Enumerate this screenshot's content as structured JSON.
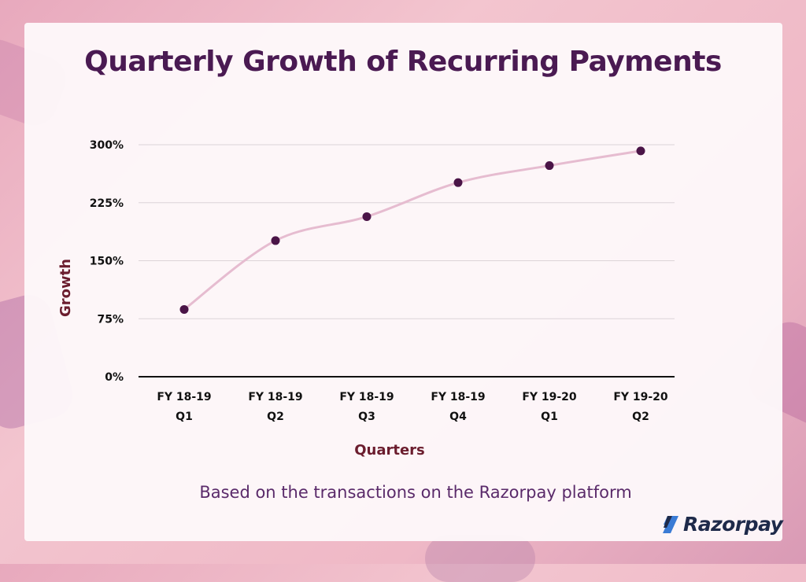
{
  "title": "Quarterly Growth of Recurring Payments",
  "caption": "Based on the transactions on the Razorpay platform",
  "brand": "Razorpay",
  "colors": {
    "title": "#4a1a52",
    "axis_label": "#6b1d2e",
    "line": "#e6bcd0",
    "point": "#4a1447",
    "brand": "#1e2a4a",
    "brand_accent": "#3a7bd5"
  },
  "chart_data": {
    "type": "line",
    "xlabel": "Quarters",
    "ylabel": "Growth",
    "ylim": [
      0,
      300
    ],
    "yticks": [
      "0%",
      "75%",
      "150%",
      "225%",
      "300%"
    ],
    "categories": [
      [
        "FY 18-19",
        "Q1"
      ],
      [
        "FY 18-19",
        "Q2"
      ],
      [
        "FY 18-19",
        "Q3"
      ],
      [
        "FY 18-19",
        "Q4"
      ],
      [
        "FY 19-20",
        "Q1"
      ],
      [
        "FY 19-20",
        "Q2"
      ]
    ],
    "values": [
      87,
      176,
      207,
      251,
      273,
      292
    ],
    "grid": true,
    "legend": "none"
  }
}
